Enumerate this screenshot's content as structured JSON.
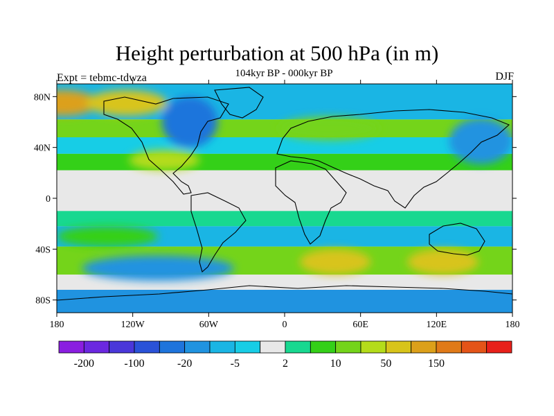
{
  "header": {
    "title": "Height perturbation at 500 hPa (in m)",
    "subtitle": "104kyr BP - 000kyr BP",
    "left_string": "Expt = tebmc-tdwza",
    "right_string": "DJF"
  },
  "chart_data": {
    "type": "heatmap",
    "title": "Height perturbation at 500 hPa (in m)",
    "variable": "500 hPa geopotential height difference",
    "units": "m",
    "season": "DJF",
    "x_axis": {
      "range": [
        -180,
        180
      ],
      "tick_values": [
        -180,
        -120,
        -60,
        0,
        60,
        120,
        180
      ],
      "tick_labels": [
        "180",
        "120W",
        "60W",
        "0",
        "60E",
        "120E",
        "180"
      ]
    },
    "y_axis": {
      "range": [
        -90,
        90
      ],
      "tick_values": [
        80,
        40,
        0,
        -40,
        -80
      ],
      "tick_labels": [
        "80N",
        "40N",
        "0",
        "40S",
        "80S"
      ]
    },
    "colorbar": {
      "colors": [
        "#8a1ee0",
        "#6b28e0",
        "#4a37d9",
        "#2a52d8",
        "#1e74dc",
        "#2093e0",
        "#1ab5e4",
        "#17cde6",
        "#e8e8e8",
        "#18d890",
        "#34d018",
        "#74d41a",
        "#b4dc1a",
        "#d8c41a",
        "#dca01a",
        "#e07a18",
        "#e45418",
        "#e8201a"
      ],
      "labels": [
        {
          "text": "-200",
          "boundary": 1
        },
        {
          "text": "-100",
          "boundary": 3
        },
        {
          "text": "-20",
          "boundary": 5
        },
        {
          "text": "-5",
          "boundary": 7
        },
        {
          "text": "2",
          "boundary": 9
        },
        {
          "text": "10",
          "boundary": 11
        },
        {
          "text": "50",
          "boundary": 13
        },
        {
          "text": "150",
          "boundary": 15
        }
      ]
    },
    "regions": [
      {
        "name": "arctic-positive-west",
        "lon": -175,
        "lat": 75,
        "rx": 28,
        "ry": 10,
        "level": 14
      },
      {
        "name": "arctic-positive-east",
        "lon": -125,
        "lat": 75,
        "rx": 32,
        "ry": 10,
        "level": 13
      },
      {
        "name": "north-america-negative",
        "lon": -75,
        "lat": 60,
        "rx": 22,
        "ry": 20,
        "level": 4
      },
      {
        "name": "north-atlantic-positive",
        "lon": -95,
        "lat": 30,
        "rx": 28,
        "ry": 8,
        "level": 12
      },
      {
        "name": "eurasia-positive",
        "lon": 35,
        "lat": 55,
        "rx": 40,
        "ry": 9,
        "level": 11
      },
      {
        "name": "north-pacific-negative",
        "lon": 155,
        "lat": 45,
        "rx": 25,
        "ry": 18,
        "level": 5
      },
      {
        "name": "south-atlantic-positive",
        "lon": 40,
        "lat": -50,
        "rx": 28,
        "ry": 10,
        "level": 13
      },
      {
        "name": "south-pacific-positive",
        "lon": 125,
        "lat": -50,
        "rx": 28,
        "ry": 10,
        "level": 13
      },
      {
        "name": "southern-ocean-negative",
        "lon": -100,
        "lat": -55,
        "rx": 60,
        "ry": 10,
        "level": 5
      },
      {
        "name": "south-pacific-subtropical-positive",
        "lon": -140,
        "lat": -30,
        "rx": 40,
        "ry": 8,
        "level": 10
      }
    ]
  }
}
